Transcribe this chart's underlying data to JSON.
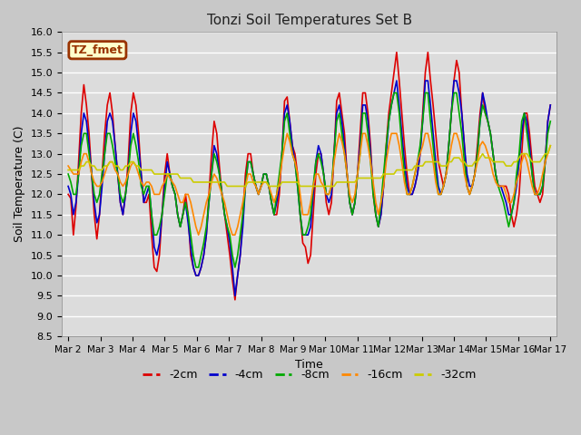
{
  "title": "Tonzi Soil Temperatures Set B",
  "xlabel": "Time",
  "ylabel": "Soil Temperature (C)",
  "ylim": [
    8.5,
    16.0
  ],
  "yticks": [
    8.5,
    9.0,
    9.5,
    10.0,
    10.5,
    11.0,
    11.5,
    12.0,
    12.5,
    13.0,
    13.5,
    14.0,
    14.5,
    15.0,
    15.5,
    16.0
  ],
  "xtick_labels": [
    "Mar 2",
    "Mar 3",
    "Mar 4",
    "Mar 5",
    "Mar 6",
    "Mar 7",
    "Mar 8",
    "Mar 9",
    "Mar 10",
    "Mar 11",
    "Mar 12",
    "Mar 13",
    "Mar 14",
    "Mar 15",
    "Mar 16",
    "Mar 17"
  ],
  "annotation_text": "TZ_fmet",
  "annotation_bg": "#ffffcc",
  "annotation_border": "#993300",
  "annotation_text_color": "#993300",
  "legend_entries": [
    "-2cm",
    "-4cm",
    "-8cm",
    "-16cm",
    "-32cm"
  ],
  "line_colors": [
    "#dd0000",
    "#0000cc",
    "#00aa00",
    "#ff8800",
    "#cccc00"
  ],
  "line_width": 1.2,
  "series": {
    "m2cm": [
      12.0,
      11.9,
      11.0,
      11.7,
      12.8,
      14.0,
      14.7,
      14.2,
      13.5,
      12.5,
      11.5,
      10.9,
      11.5,
      12.5,
      13.5,
      14.2,
      14.5,
      14.0,
      13.2,
      12.5,
      11.8,
      11.5,
      12.0,
      12.8,
      14.0,
      14.5,
      14.2,
      13.5,
      12.5,
      11.8,
      11.8,
      12.0,
      11.0,
      10.2,
      10.1,
      10.5,
      11.5,
      12.5,
      13.0,
      12.5,
      12.2,
      12.0,
      11.5,
      11.2,
      11.5,
      12.0,
      11.5,
      10.5,
      10.2,
      10.0,
      10.0,
      10.2,
      10.5,
      11.0,
      12.0,
      13.0,
      13.8,
      13.5,
      12.7,
      12.0,
      11.5,
      11.0,
      10.5,
      9.9,
      9.4,
      10.0,
      10.5,
      11.5,
      12.5,
      13.0,
      13.0,
      12.5,
      12.2,
      12.0,
      12.2,
      12.5,
      12.5,
      12.2,
      11.8,
      11.5,
      11.5,
      12.0,
      13.0,
      14.3,
      14.4,
      13.8,
      13.2,
      13.0,
      12.5,
      11.5,
      10.8,
      10.7,
      10.3,
      10.5,
      11.5,
      12.5,
      13.0,
      13.0,
      12.5,
      11.8,
      11.5,
      11.8,
      13.0,
      14.3,
      14.5,
      14.0,
      13.5,
      12.5,
      11.8,
      11.5,
      11.8,
      12.5,
      13.5,
      14.5,
      14.5,
      14.0,
      13.2,
      12.0,
      11.5,
      11.2,
      11.5,
      12.2,
      13.2,
      14.0,
      14.5,
      15.0,
      15.5,
      14.8,
      14.0,
      13.2,
      12.5,
      12.0,
      12.0,
      12.2,
      12.5,
      13.0,
      14.0,
      15.0,
      15.5,
      14.8,
      14.2,
      13.5,
      12.8,
      12.5,
      12.2,
      12.5,
      13.2,
      14.0,
      14.8,
      15.3,
      15.0,
      14.0,
      13.2,
      12.2,
      12.0,
      12.2,
      12.5,
      13.2,
      14.0,
      14.5,
      14.0,
      13.8,
      13.5,
      13.0,
      12.5,
      12.2,
      12.2,
      12.2,
      12.2,
      12.0,
      11.5,
      11.2,
      11.5,
      12.0,
      13.0,
      14.0,
      14.0,
      13.5,
      12.8,
      12.2,
      12.0,
      11.8,
      12.0,
      12.8,
      13.8,
      14.2
    ],
    "m4cm": [
      12.2,
      12.0,
      11.5,
      11.8,
      12.5,
      13.5,
      14.0,
      13.8,
      13.2,
      12.5,
      11.8,
      11.3,
      11.5,
      12.2,
      13.0,
      13.8,
      14.0,
      13.8,
      13.2,
      12.5,
      11.8,
      11.5,
      12.0,
      12.5,
      13.5,
      14.0,
      13.8,
      13.2,
      12.5,
      11.8,
      12.0,
      12.2,
      11.5,
      10.7,
      10.5,
      10.8,
      11.5,
      12.2,
      12.8,
      12.5,
      12.2,
      12.0,
      11.5,
      11.2,
      11.5,
      11.8,
      11.3,
      10.7,
      10.2,
      10.0,
      10.0,
      10.2,
      10.5,
      11.0,
      11.8,
      12.5,
      13.2,
      13.0,
      12.5,
      12.0,
      11.5,
      11.2,
      10.8,
      10.2,
      9.5,
      10.0,
      10.5,
      11.2,
      12.2,
      12.8,
      12.8,
      12.5,
      12.2,
      12.0,
      12.2,
      12.5,
      12.5,
      12.2,
      11.8,
      11.5,
      11.8,
      12.2,
      13.0,
      14.0,
      14.2,
      13.8,
      13.2,
      12.8,
      12.2,
      11.5,
      11.0,
      11.0,
      11.0,
      11.2,
      12.0,
      12.8,
      13.2,
      13.0,
      12.5,
      12.0,
      11.8,
      12.0,
      13.0,
      14.0,
      14.2,
      13.8,
      13.2,
      12.5,
      11.8,
      11.5,
      11.8,
      12.5,
      13.2,
      14.2,
      14.2,
      13.8,
      13.0,
      12.2,
      11.5,
      11.2,
      11.5,
      12.2,
      13.0,
      13.8,
      14.2,
      14.5,
      14.8,
      14.2,
      13.5,
      12.8,
      12.2,
      12.0,
      12.0,
      12.2,
      12.5,
      13.0,
      13.8,
      14.8,
      14.8,
      14.2,
      13.5,
      12.8,
      12.2,
      12.0,
      12.2,
      12.5,
      13.2,
      14.0,
      14.8,
      14.8,
      14.5,
      14.0,
      13.2,
      12.5,
      12.2,
      12.2,
      12.5,
      13.0,
      13.8,
      14.5,
      14.2,
      13.8,
      13.5,
      13.0,
      12.5,
      12.2,
      12.2,
      12.0,
      11.8,
      11.5,
      11.5,
      11.8,
      12.2,
      12.8,
      13.5,
      14.0,
      13.8,
      13.2,
      12.5,
      12.0,
      12.0,
      12.0,
      12.2,
      12.8,
      13.8,
      14.2
    ],
    "m8cm": [
      12.5,
      12.3,
      12.0,
      12.0,
      12.5,
      13.2,
      13.5,
      13.5,
      13.0,
      12.5,
      12.0,
      11.8,
      12.0,
      12.5,
      13.0,
      13.5,
      13.5,
      13.2,
      12.8,
      12.5,
      12.0,
      11.8,
      12.0,
      12.5,
      13.2,
      13.5,
      13.2,
      12.8,
      12.2,
      12.0,
      12.2,
      12.2,
      11.5,
      11.0,
      11.0,
      11.2,
      11.5,
      12.0,
      12.5,
      12.5,
      12.2,
      12.0,
      11.5,
      11.2,
      11.5,
      11.8,
      11.5,
      11.0,
      10.5,
      10.2,
      10.2,
      10.5,
      10.8,
      11.2,
      11.8,
      12.5,
      13.0,
      12.8,
      12.5,
      12.0,
      11.5,
      11.2,
      11.0,
      10.5,
      10.2,
      10.5,
      11.0,
      11.5,
      12.2,
      12.8,
      12.8,
      12.5,
      12.2,
      12.0,
      12.2,
      12.5,
      12.5,
      12.2,
      11.8,
      11.5,
      12.0,
      12.5,
      13.0,
      13.8,
      14.0,
      13.5,
      13.0,
      12.8,
      12.2,
      11.5,
      11.0,
      11.0,
      11.2,
      11.5,
      12.2,
      12.8,
      13.0,
      12.8,
      12.5,
      12.0,
      12.0,
      12.2,
      13.0,
      13.8,
      14.0,
      13.5,
      13.0,
      12.5,
      11.8,
      11.5,
      11.8,
      12.5,
      13.0,
      14.0,
      14.0,
      13.5,
      12.8,
      12.0,
      11.5,
      11.2,
      11.8,
      12.5,
      13.2,
      13.8,
      14.2,
      14.5,
      14.5,
      14.0,
      13.2,
      12.5,
      12.0,
      12.0,
      12.2,
      12.5,
      12.8,
      13.2,
      13.8,
      14.5,
      14.5,
      13.8,
      13.2,
      12.5,
      12.0,
      12.0,
      12.2,
      12.5,
      13.2,
      14.0,
      14.5,
      14.5,
      14.0,
      13.5,
      12.8,
      12.2,
      12.0,
      12.2,
      12.5,
      13.0,
      13.8,
      14.2,
      14.0,
      13.8,
      13.5,
      13.0,
      12.5,
      12.2,
      12.0,
      11.8,
      11.5,
      11.2,
      11.5,
      11.8,
      12.5,
      13.0,
      13.8,
      14.0,
      13.5,
      13.0,
      12.5,
      12.0,
      12.0,
      12.0,
      12.2,
      12.8,
      13.5,
      13.8
    ],
    "m16cm": [
      12.7,
      12.6,
      12.5,
      12.5,
      12.5,
      12.8,
      13.0,
      13.0,
      12.8,
      12.5,
      12.3,
      12.2,
      12.2,
      12.3,
      12.5,
      12.7,
      12.8,
      12.8,
      12.6,
      12.5,
      12.3,
      12.2,
      12.3,
      12.5,
      12.7,
      12.8,
      12.7,
      12.5,
      12.3,
      12.2,
      12.3,
      12.3,
      12.2,
      12.0,
      12.0,
      12.0,
      12.2,
      12.3,
      12.5,
      12.4,
      12.3,
      12.2,
      12.0,
      11.8,
      11.8,
      12.0,
      12.0,
      11.8,
      11.5,
      11.2,
      11.0,
      11.2,
      11.5,
      11.8,
      12.0,
      12.3,
      12.5,
      12.4,
      12.2,
      12.0,
      11.8,
      11.5,
      11.2,
      11.0,
      11.0,
      11.2,
      11.5,
      11.8,
      12.2,
      12.5,
      12.5,
      12.3,
      12.2,
      12.0,
      12.2,
      12.3,
      12.3,
      12.2,
      12.0,
      11.8,
      12.0,
      12.3,
      12.8,
      13.2,
      13.5,
      13.3,
      13.0,
      12.8,
      12.5,
      12.0,
      11.5,
      11.5,
      11.5,
      11.8,
      12.2,
      12.5,
      12.5,
      12.3,
      12.2,
      12.0,
      12.0,
      12.2,
      12.8,
      13.2,
      13.5,
      13.3,
      13.0,
      12.5,
      12.0,
      11.8,
      12.0,
      12.5,
      13.0,
      13.5,
      13.5,
      13.2,
      12.8,
      12.3,
      11.8,
      11.5,
      11.8,
      12.2,
      12.8,
      13.2,
      13.5,
      13.5,
      13.5,
      13.2,
      12.8,
      12.3,
      12.0,
      12.0,
      12.2,
      12.5,
      12.8,
      13.0,
      13.2,
      13.5,
      13.5,
      13.2,
      12.8,
      12.3,
      12.0,
      12.0,
      12.2,
      12.5,
      12.8,
      13.2,
      13.5,
      13.5,
      13.3,
      13.0,
      12.5,
      12.2,
      12.0,
      12.2,
      12.5,
      12.8,
      13.2,
      13.3,
      13.2,
      13.0,
      12.8,
      12.5,
      12.3,
      12.2,
      12.2,
      12.2,
      12.0,
      11.8,
      11.8,
      12.0,
      12.3,
      12.5,
      12.8,
      13.0,
      12.8,
      12.5,
      12.2,
      12.0,
      12.0,
      12.2,
      12.5,
      12.8,
      13.0,
      13.2
    ],
    "m32cm": [
      12.6,
      12.6,
      12.6,
      12.6,
      12.6,
      12.7,
      12.7,
      12.8,
      12.8,
      12.7,
      12.7,
      12.6,
      12.6,
      12.6,
      12.7,
      12.7,
      12.8,
      12.8,
      12.7,
      12.7,
      12.6,
      12.6,
      12.7,
      12.7,
      12.8,
      12.8,
      12.7,
      12.7,
      12.6,
      12.6,
      12.6,
      12.6,
      12.6,
      12.5,
      12.5,
      12.5,
      12.5,
      12.5,
      12.5,
      12.5,
      12.5,
      12.5,
      12.5,
      12.4,
      12.4,
      12.4,
      12.4,
      12.4,
      12.3,
      12.3,
      12.3,
      12.3,
      12.3,
      12.3,
      12.3,
      12.3,
      12.3,
      12.3,
      12.3,
      12.3,
      12.3,
      12.2,
      12.2,
      12.2,
      12.2,
      12.2,
      12.2,
      12.2,
      12.2,
      12.3,
      12.3,
      12.3,
      12.3,
      12.3,
      12.3,
      12.3,
      12.3,
      12.2,
      12.2,
      12.2,
      12.2,
      12.2,
      12.3,
      12.3,
      12.3,
      12.3,
      12.3,
      12.3,
      12.3,
      12.2,
      12.2,
      12.2,
      12.2,
      12.2,
      12.2,
      12.2,
      12.2,
      12.2,
      12.2,
      12.2,
      12.2,
      12.2,
      12.2,
      12.3,
      12.3,
      12.3,
      12.3,
      12.3,
      12.3,
      12.3,
      12.3,
      12.4,
      12.4,
      12.4,
      12.4,
      12.4,
      12.4,
      12.4,
      12.4,
      12.4,
      12.4,
      12.5,
      12.5,
      12.5,
      12.5,
      12.5,
      12.6,
      12.6,
      12.6,
      12.6,
      12.6,
      12.6,
      12.6,
      12.7,
      12.7,
      12.7,
      12.7,
      12.8,
      12.8,
      12.8,
      12.8,
      12.8,
      12.8,
      12.7,
      12.7,
      12.7,
      12.8,
      12.8,
      12.9,
      12.9,
      12.9,
      12.8,
      12.8,
      12.7,
      12.7,
      12.7,
      12.8,
      12.8,
      12.9,
      13.0,
      12.9,
      12.9,
      12.9,
      12.8,
      12.8,
      12.8,
      12.8,
      12.8,
      12.7,
      12.7,
      12.7,
      12.8,
      12.8,
      12.9,
      13.0,
      13.0,
      13.0,
      12.9,
      12.8,
      12.8,
      12.8,
      12.8,
      12.9,
      13.0,
      13.0,
      13.2
    ]
  }
}
